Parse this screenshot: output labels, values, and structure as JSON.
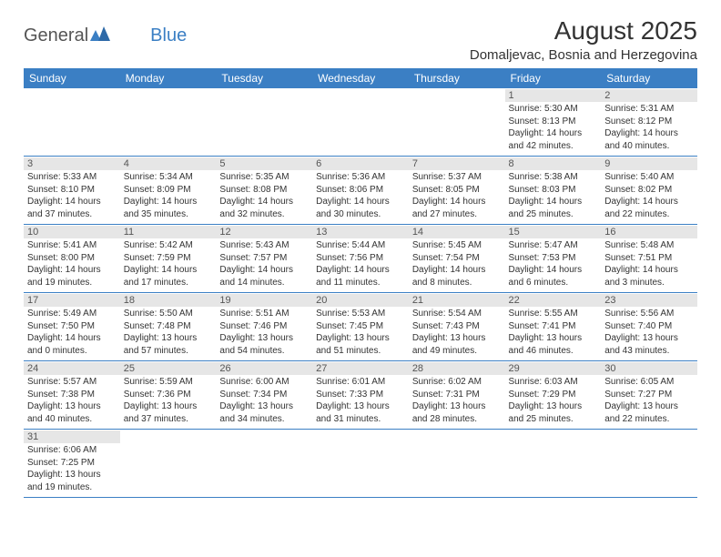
{
  "logo": {
    "text1": "General",
    "text2": "Blue"
  },
  "title": "August 2025",
  "location": "Domaljevac, Bosnia and Herzegovina",
  "colors": {
    "header_bg": "#3b7fc4",
    "header_text": "#ffffff",
    "daynum_bg": "#e6e6e6",
    "border": "#3b7fc4",
    "text": "#333333",
    "background": "#ffffff"
  },
  "day_names": [
    "Sunday",
    "Monday",
    "Tuesday",
    "Wednesday",
    "Thursday",
    "Friday",
    "Saturday"
  ],
  "weeks": [
    [
      null,
      null,
      null,
      null,
      null,
      {
        "n": "1",
        "sr": "Sunrise: 5:30 AM",
        "ss": "Sunset: 8:13 PM",
        "d1": "Daylight: 14 hours",
        "d2": "and 42 minutes."
      },
      {
        "n": "2",
        "sr": "Sunrise: 5:31 AM",
        "ss": "Sunset: 8:12 PM",
        "d1": "Daylight: 14 hours",
        "d2": "and 40 minutes."
      }
    ],
    [
      {
        "n": "3",
        "sr": "Sunrise: 5:33 AM",
        "ss": "Sunset: 8:10 PM",
        "d1": "Daylight: 14 hours",
        "d2": "and 37 minutes."
      },
      {
        "n": "4",
        "sr": "Sunrise: 5:34 AM",
        "ss": "Sunset: 8:09 PM",
        "d1": "Daylight: 14 hours",
        "d2": "and 35 minutes."
      },
      {
        "n": "5",
        "sr": "Sunrise: 5:35 AM",
        "ss": "Sunset: 8:08 PM",
        "d1": "Daylight: 14 hours",
        "d2": "and 32 minutes."
      },
      {
        "n": "6",
        "sr": "Sunrise: 5:36 AM",
        "ss": "Sunset: 8:06 PM",
        "d1": "Daylight: 14 hours",
        "d2": "and 30 minutes."
      },
      {
        "n": "7",
        "sr": "Sunrise: 5:37 AM",
        "ss": "Sunset: 8:05 PM",
        "d1": "Daylight: 14 hours",
        "d2": "and 27 minutes."
      },
      {
        "n": "8",
        "sr": "Sunrise: 5:38 AM",
        "ss": "Sunset: 8:03 PM",
        "d1": "Daylight: 14 hours",
        "d2": "and 25 minutes."
      },
      {
        "n": "9",
        "sr": "Sunrise: 5:40 AM",
        "ss": "Sunset: 8:02 PM",
        "d1": "Daylight: 14 hours",
        "d2": "and 22 minutes."
      }
    ],
    [
      {
        "n": "10",
        "sr": "Sunrise: 5:41 AM",
        "ss": "Sunset: 8:00 PM",
        "d1": "Daylight: 14 hours",
        "d2": "and 19 minutes."
      },
      {
        "n": "11",
        "sr": "Sunrise: 5:42 AM",
        "ss": "Sunset: 7:59 PM",
        "d1": "Daylight: 14 hours",
        "d2": "and 17 minutes."
      },
      {
        "n": "12",
        "sr": "Sunrise: 5:43 AM",
        "ss": "Sunset: 7:57 PM",
        "d1": "Daylight: 14 hours",
        "d2": "and 14 minutes."
      },
      {
        "n": "13",
        "sr": "Sunrise: 5:44 AM",
        "ss": "Sunset: 7:56 PM",
        "d1": "Daylight: 14 hours",
        "d2": "and 11 minutes."
      },
      {
        "n": "14",
        "sr": "Sunrise: 5:45 AM",
        "ss": "Sunset: 7:54 PM",
        "d1": "Daylight: 14 hours",
        "d2": "and 8 minutes."
      },
      {
        "n": "15",
        "sr": "Sunrise: 5:47 AM",
        "ss": "Sunset: 7:53 PM",
        "d1": "Daylight: 14 hours",
        "d2": "and 6 minutes."
      },
      {
        "n": "16",
        "sr": "Sunrise: 5:48 AM",
        "ss": "Sunset: 7:51 PM",
        "d1": "Daylight: 14 hours",
        "d2": "and 3 minutes."
      }
    ],
    [
      {
        "n": "17",
        "sr": "Sunrise: 5:49 AM",
        "ss": "Sunset: 7:50 PM",
        "d1": "Daylight: 14 hours",
        "d2": "and 0 minutes."
      },
      {
        "n": "18",
        "sr": "Sunrise: 5:50 AM",
        "ss": "Sunset: 7:48 PM",
        "d1": "Daylight: 13 hours",
        "d2": "and 57 minutes."
      },
      {
        "n": "19",
        "sr": "Sunrise: 5:51 AM",
        "ss": "Sunset: 7:46 PM",
        "d1": "Daylight: 13 hours",
        "d2": "and 54 minutes."
      },
      {
        "n": "20",
        "sr": "Sunrise: 5:53 AM",
        "ss": "Sunset: 7:45 PM",
        "d1": "Daylight: 13 hours",
        "d2": "and 51 minutes."
      },
      {
        "n": "21",
        "sr": "Sunrise: 5:54 AM",
        "ss": "Sunset: 7:43 PM",
        "d1": "Daylight: 13 hours",
        "d2": "and 49 minutes."
      },
      {
        "n": "22",
        "sr": "Sunrise: 5:55 AM",
        "ss": "Sunset: 7:41 PM",
        "d1": "Daylight: 13 hours",
        "d2": "and 46 minutes."
      },
      {
        "n": "23",
        "sr": "Sunrise: 5:56 AM",
        "ss": "Sunset: 7:40 PM",
        "d1": "Daylight: 13 hours",
        "d2": "and 43 minutes."
      }
    ],
    [
      {
        "n": "24",
        "sr": "Sunrise: 5:57 AM",
        "ss": "Sunset: 7:38 PM",
        "d1": "Daylight: 13 hours",
        "d2": "and 40 minutes."
      },
      {
        "n": "25",
        "sr": "Sunrise: 5:59 AM",
        "ss": "Sunset: 7:36 PM",
        "d1": "Daylight: 13 hours",
        "d2": "and 37 minutes."
      },
      {
        "n": "26",
        "sr": "Sunrise: 6:00 AM",
        "ss": "Sunset: 7:34 PM",
        "d1": "Daylight: 13 hours",
        "d2": "and 34 minutes."
      },
      {
        "n": "27",
        "sr": "Sunrise: 6:01 AM",
        "ss": "Sunset: 7:33 PM",
        "d1": "Daylight: 13 hours",
        "d2": "and 31 minutes."
      },
      {
        "n": "28",
        "sr": "Sunrise: 6:02 AM",
        "ss": "Sunset: 7:31 PM",
        "d1": "Daylight: 13 hours",
        "d2": "and 28 minutes."
      },
      {
        "n": "29",
        "sr": "Sunrise: 6:03 AM",
        "ss": "Sunset: 7:29 PM",
        "d1": "Daylight: 13 hours",
        "d2": "and 25 minutes."
      },
      {
        "n": "30",
        "sr": "Sunrise: 6:05 AM",
        "ss": "Sunset: 7:27 PM",
        "d1": "Daylight: 13 hours",
        "d2": "and 22 minutes."
      }
    ],
    [
      {
        "n": "31",
        "sr": "Sunrise: 6:06 AM",
        "ss": "Sunset: 7:25 PM",
        "d1": "Daylight: 13 hours",
        "d2": "and 19 minutes."
      },
      null,
      null,
      null,
      null,
      null,
      null
    ]
  ]
}
